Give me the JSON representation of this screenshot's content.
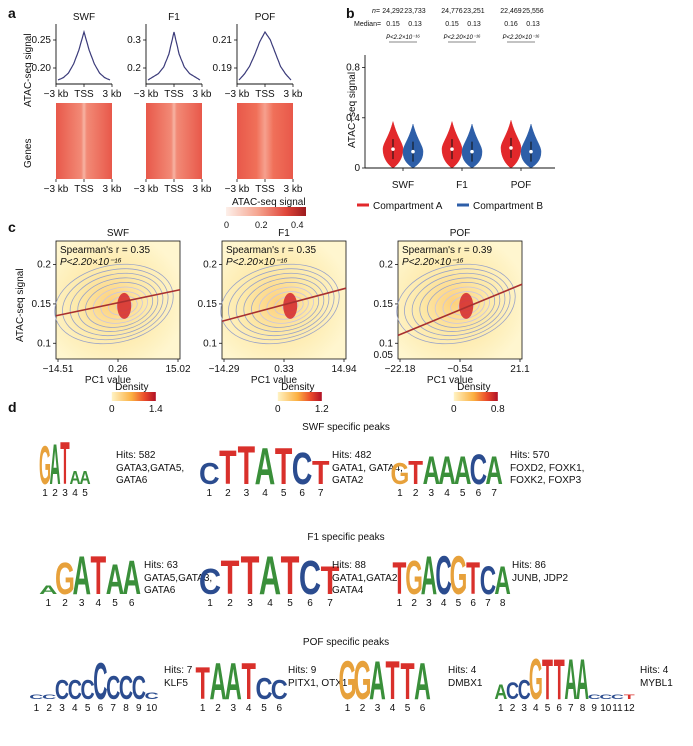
{
  "panels": {
    "a": "a",
    "b": "b",
    "c": "c",
    "d": "d"
  },
  "chart_data": [
    {
      "panel": "a",
      "type": "line",
      "ylabel": "ATAC-seq signal",
      "x_ticks": [
        "−3 kb",
        "TSS",
        "3 kb"
      ],
      "profiles": [
        {
          "name": "SWF",
          "yticks": [
            "0.25",
            "0.20"
          ],
          "shape": "sharp",
          "values": [
            0.155,
            0.16,
            0.17,
            0.19,
            0.22,
            0.26,
            0.22,
            0.19,
            0.17,
            0.16,
            0.155
          ]
        },
        {
          "name": "F1",
          "yticks": [
            "0.3",
            "0.2"
          ],
          "shape": "sharp",
          "values": [
            0.16,
            0.17,
            0.18,
            0.2,
            0.24,
            0.31,
            0.24,
            0.2,
            0.18,
            0.17,
            0.16
          ]
        },
        {
          "name": "POF",
          "yticks": [
            "0.21",
            "0.19"
          ],
          "shape": "broad",
          "values": [
            0.183,
            0.186,
            0.19,
            0.196,
            0.203,
            0.208,
            0.204,
            0.197,
            0.19,
            0.186,
            0.183
          ]
        }
      ],
      "heatmap_ylabel": "Genes",
      "colorbar": {
        "title": "ATAC-seq signal",
        "ticks": [
          "0",
          "0.2",
          "0.4"
        ],
        "range": [
          0,
          0.4
        ]
      }
    },
    {
      "panel": "b",
      "type": "violin",
      "ylabel": "ATAC−seq signal",
      "yticks": [
        "0",
        "0.4",
        "0.8"
      ],
      "ylim": [
        0,
        0.9
      ],
      "n_label": "n=",
      "median_label": "Median=",
      "groups": [
        {
          "name": "SWF",
          "n": [
            "24,292",
            "23,733"
          ],
          "median": [
            "0.15",
            "0.13"
          ],
          "p": "P<2.2×10⁻¹⁶",
          "medians": [
            0.15,
            0.13
          ]
        },
        {
          "name": "F1",
          "n": [
            "24,776",
            "23,251"
          ],
          "median": [
            "0.15",
            "0.13"
          ],
          "p": "P<2.20×10⁻¹⁶",
          "medians": [
            0.15,
            0.13
          ]
        },
        {
          "name": "POF",
          "n": [
            "22,469",
            "25,556"
          ],
          "median": [
            "0.16",
            "0.13"
          ],
          "p": "P<2.20×10⁻¹⁶",
          "medians": [
            0.16,
            0.13
          ]
        }
      ],
      "legend": [
        {
          "name": "Compartment A",
          "color": "#e2282b"
        },
        {
          "name": "Compartment B",
          "color": "#2d5ea8"
        }
      ]
    },
    {
      "panel": "c",
      "type": "scatter",
      "ylabel": "ATAC-seq signal",
      "xlabel": "PC1 value",
      "density_label": "Density",
      "plots": [
        {
          "title": "SWF",
          "r_label": "Spearman's r = 0.35",
          "p_label": "P<2.20×10⁻¹⁶",
          "xticks": [
            "−14.51",
            "0.26",
            "15.02"
          ],
          "yticks": [
            "0.2",
            "0.15",
            "0.1"
          ],
          "density_ticks": [
            "0",
            "1.4"
          ],
          "fit": [
            0.135,
            0.168
          ]
        },
        {
          "title": "F1",
          "r_label": "Spearman's r = 0.35",
          "p_label": "P<2.20×10⁻¹⁶",
          "xticks": [
            "−14.29",
            "0.33",
            "14.94"
          ],
          "yticks": [
            "0.2",
            "0.15",
            "0.1"
          ],
          "density_ticks": [
            "0",
            "1.2"
          ],
          "fit": [
            0.128,
            0.17
          ]
        },
        {
          "title": "POF",
          "r_label": "Spearman's r = 0.39",
          "p_label": "P<2.20×10⁻¹⁶",
          "xticks": [
            "−22.18",
            "−0.54",
            "21.1"
          ],
          "yticks": [
            "0.2",
            "0.15",
            "0.1",
            "0.05"
          ],
          "density_ticks": [
            "0",
            "0.8"
          ],
          "fit": [
            0.11,
            0.175
          ]
        }
      ]
    },
    {
      "panel": "d",
      "type": "table",
      "sections": [
        {
          "title": "SWF specific peaks",
          "motifs": [
            {
              "letters": [
                "G",
                "A",
                "T",
                "A",
                "A"
              ],
              "heights": [
                1.8,
                1.9,
                2.0,
                0.6,
                0.6
              ],
              "hits": "Hits: 582",
              "tfs": [
                "GATA3,GATA5,",
                "GATA6"
              ]
            },
            {
              "letters": [
                "C",
                "T",
                "T",
                "A",
                "T",
                "C",
                "T"
              ],
              "heights": [
                1.0,
                1.6,
                1.8,
                1.7,
                1.7,
                1.5,
                1.1
              ],
              "hits": "Hits: 482",
              "tfs": [
                "GATA1, GATA4,",
                "GATA2"
              ]
            },
            {
              "letters": [
                "G",
                "T",
                "A",
                "A",
                "A",
                "C",
                "A"
              ],
              "heights": [
                1.0,
                1.1,
                1.3,
                1.3,
                1.3,
                1.4,
                1.3
              ],
              "hits": "Hits: 570",
              "tfs": [
                "FOXD2, FOXK1,",
                "FOXK2, FOXP3"
              ]
            }
          ]
        },
        {
          "title": "F1 specific peaks",
          "motifs": [
            {
              "letters": [
                "A",
                "G",
                "A",
                "T",
                "A",
                "A"
              ],
              "heights": [
                0.4,
                1.5,
                1.8,
                1.8,
                1.4,
                1.6
              ],
              "hits": "Hits: 63",
              "tfs": [
                "GATA5,GATA3,",
                "GATA6"
              ]
            },
            {
              "letters": [
                "C",
                "T",
                "T",
                "A",
                "T",
                "C",
                "T"
              ],
              "heights": [
                1.2,
                1.6,
                1.8,
                1.8,
                1.8,
                1.6,
                1.3
              ],
              "hits": "Hits: 88",
              "tfs": [
                "GATA1,GATA2,",
                "GATA4"
              ]
            },
            {
              "letters": [
                "T",
                "G",
                "A",
                "C",
                "G",
                "T",
                "C",
                "A"
              ],
              "heights": [
                1.5,
                1.6,
                1.8,
                1.8,
                1.8,
                1.5,
                1.3,
                1.3
              ],
              "hits": "Hits: 86",
              "tfs": [
                "JUNB, JDP2"
              ]
            }
          ]
        },
        {
          "title": "POF specific peaks",
          "motifs": [
            {
              "letters": [
                "C",
                "C",
                "C",
                "C",
                "C",
                "C",
                "C",
                "C",
                "C",
                "C"
              ],
              "heights": [
                0.2,
                0.2,
                0.9,
                0.9,
                0.9,
                1.7,
                1.1,
                1.1,
                1.1,
                0.3
              ],
              "hits": "Hits: 7",
              "tfs": [
                "KLF5"
              ]
            },
            {
              "letters": [
                "T",
                "A",
                "A",
                "T",
                "C",
                "C"
              ],
              "heights": [
                1.5,
                1.7,
                1.7,
                1.7,
                1.0,
                0.9
              ],
              "hits": "Hits: 9",
              "tfs": [
                "PITX1, OTX1"
              ]
            },
            {
              "letters": [
                "G",
                "G",
                "A",
                "T",
                "T",
                "A"
              ],
              "heights": [
                1.8,
                1.8,
                1.8,
                1.8,
                1.7,
                1.7
              ],
              "hits": "Hits: 4",
              "tfs": [
                "DMBX1"
              ]
            },
            {
              "letters": [
                "A",
                "C",
                "C",
                "G",
                "T",
                "T",
                "A",
                "A",
                "C",
                "C",
                "C",
                "T"
              ],
              "heights": [
                0.7,
                0.8,
                0.9,
                1.9,
                1.9,
                1.9,
                1.9,
                1.9,
                0.2,
                0.2,
                0.2,
                0.2
              ],
              "hits": "Hits: 4",
              "tfs": [
                "MYBL1"
              ]
            }
          ]
        }
      ]
    }
  ]
}
